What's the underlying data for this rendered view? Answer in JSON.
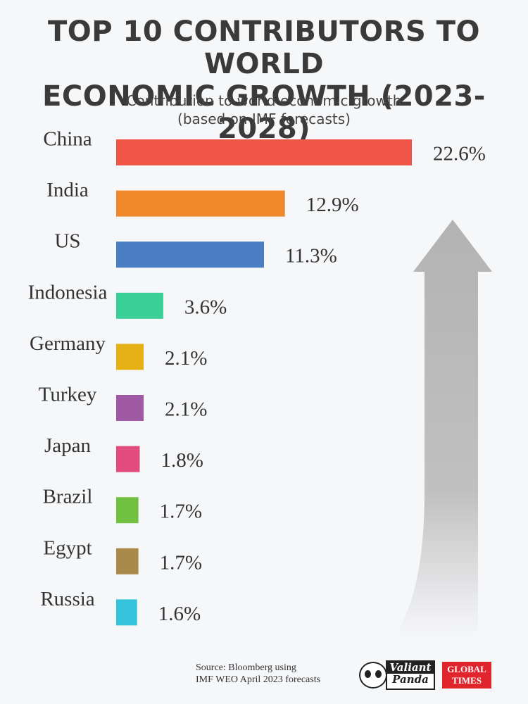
{
  "title": {
    "line1": "TOP 10 CONTRIBUTORS TO WORLD",
    "line2": "ECONOMIC GROWTH (2023-2028)"
  },
  "subtitle": {
    "line1": "Contribution to world economic growth",
    "line2": "(based on IMF forecasts)"
  },
  "chart_data": {
    "type": "bar",
    "orientation": "horizontal",
    "title": "TOP 10 CONTRIBUTORS TO WORLD ECONOMIC GROWTH (2023-2028)",
    "subtitle": "Contribution to world economic growth (based on IMF forecasts)",
    "categories": [
      "China",
      "India",
      "US",
      "Indonesia",
      "Germany",
      "Turkey",
      "Japan",
      "Brazil",
      "Egypt",
      "Russia"
    ],
    "values": [
      22.6,
      12.9,
      11.3,
      3.6,
      2.1,
      2.1,
      1.8,
      1.7,
      1.7,
      1.6
    ],
    "value_labels": [
      "22.6%",
      "12.9%",
      "11.3%",
      "3.6%",
      "2.1%",
      "2.1%",
      "1.8%",
      "1.7%",
      "1.7%",
      "1.6%"
    ],
    "colors": [
      "#ef5647",
      "#f0892b",
      "#4a7fc3",
      "#39cf96",
      "#e6b117",
      "#a05aa4",
      "#e24b7d",
      "#72c042",
      "#aa8a4a",
      "#33c4db"
    ],
    "unit": "%",
    "xlim": [
      0,
      22.6
    ],
    "grid": false,
    "legend": "none"
  },
  "footer": {
    "source_line1": "Source: Bloomberg using",
    "source_line2": "IMF WEO April 2023 forecasts",
    "logo1_line1": "Valiant",
    "logo1_line2": "Panda",
    "logo2_line1": "GLOBAL",
    "logo2_line2": "TIMES"
  },
  "arrow_icon": "up-arrow-icon"
}
